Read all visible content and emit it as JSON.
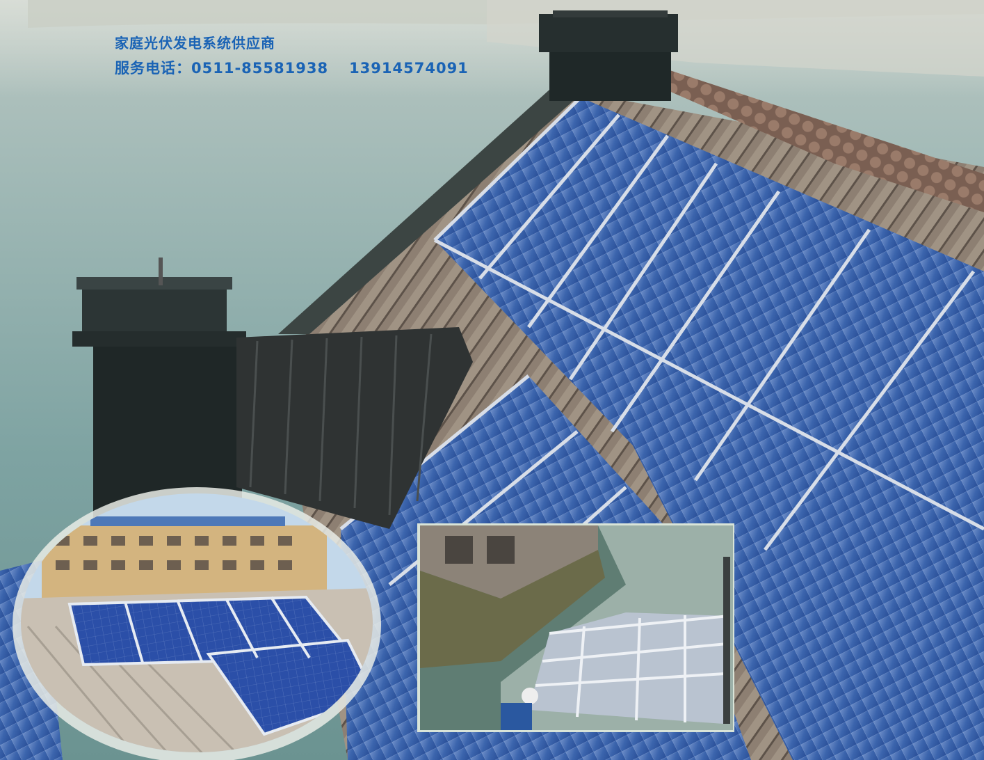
{
  "header": {
    "company_line": "家庭光伏发电系统供应商",
    "phone_label": "服务电话：",
    "phone_1": "0511-85581938",
    "phone_2": "13914574091"
  },
  "colors": {
    "header_text": "#1a63b5",
    "water": "#7fa6a4",
    "solar_panel": "#2f5fa8",
    "roof_tile": "#8b7b6c",
    "chimney": "#1e2a2a"
  }
}
